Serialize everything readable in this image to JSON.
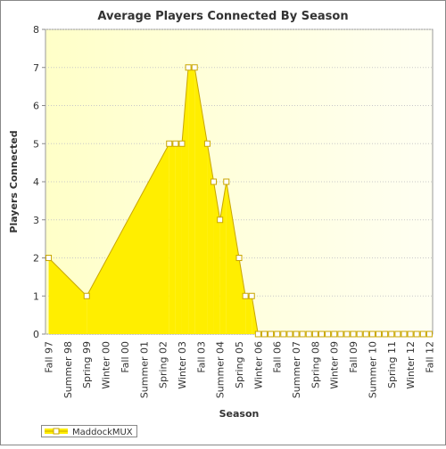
{
  "chart_data": {
    "type": "area",
    "title": "Average Players Connected By Season",
    "x_label": "Season",
    "y_label": "Players Connected",
    "categories": [
      "Fall 97",
      null,
      null,
      "Summer 98",
      null,
      null,
      "Spring 99",
      null,
      null,
      "Winter 00",
      null,
      null,
      "Fall 00",
      null,
      null,
      "Summer 01",
      null,
      null,
      "Spring 02",
      null,
      null,
      "Winter 03",
      null,
      null,
      "Fall 03",
      null,
      null,
      "Summer 04",
      null,
      null,
      "Spring 05",
      null,
      null,
      "Winter 06",
      null,
      null,
      "Fall 06",
      null,
      null,
      "Summer 07",
      null,
      null,
      "Spring 08",
      null,
      null,
      "Winter 09",
      null,
      null,
      "Fall 09",
      null,
      null,
      "Summer 10",
      null,
      null,
      "Spring 11",
      null,
      null,
      "Winter 12",
      null,
      null,
      "Fall 12"
    ],
    "series": [
      {
        "name": "MaddockMUX",
        "color": "#ffee00",
        "line_color": "#c9a600",
        "values": [
          2,
          null,
          null,
          null,
          null,
          null,
          1,
          null,
          null,
          null,
          null,
          null,
          null,
          null,
          null,
          null,
          null,
          null,
          null,
          5,
          5,
          5,
          7,
          7,
          null,
          5,
          4,
          3,
          4,
          null,
          2,
          1,
          1,
          0,
          0,
          0,
          0,
          0,
          0,
          0,
          0,
          0,
          0,
          0,
          0,
          0,
          0,
          0,
          0,
          0,
          0,
          0,
          0,
          0,
          0,
          0,
          0,
          0,
          0,
          0,
          0
        ]
      }
    ],
    "ylim": [
      0,
      8
    ],
    "yticks": [
      0,
      1,
      2,
      3,
      4,
      5,
      6,
      7,
      8
    ],
    "grid": true,
    "legend": "bottom-left"
  }
}
